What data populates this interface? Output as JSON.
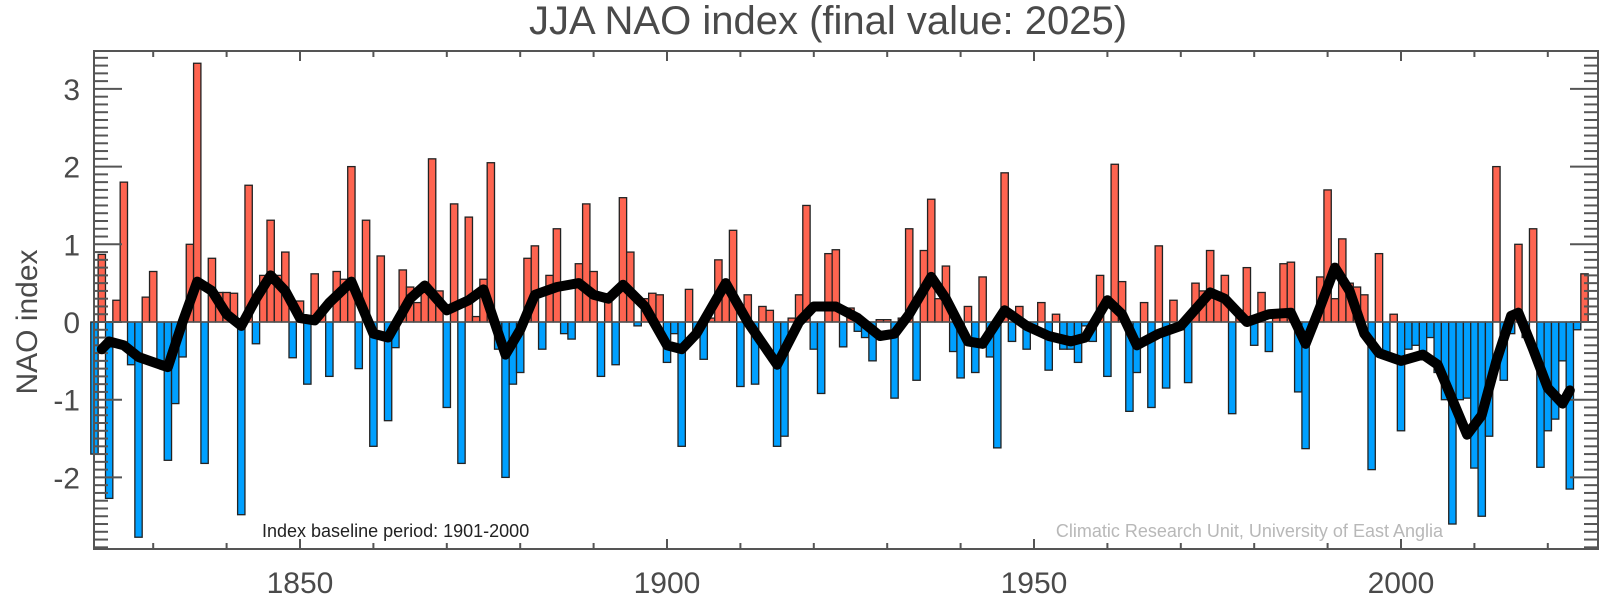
{
  "chart_data": {
    "type": "bar",
    "title": "JJA NAO index (final value: 2025)",
    "xlabel": "",
    "ylabel": "NAO index",
    "xlim": [
      1822,
      2026
    ],
    "ylim": [
      -2.95,
      3.5
    ],
    "x_ticks": [
      1850,
      1900,
      1950,
      2000
    ],
    "y_ticks": [
      -2,
      -1,
      0,
      1,
      2,
      3
    ],
    "grid": false,
    "colors": {
      "positive": "#fe6450",
      "negative": "#00a0ff",
      "smooth": "#000000",
      "axis": "#555555"
    },
    "annotations": {
      "baseline": "Index baseline period: 1901-2000",
      "credit": "Climatic Research Unit, University of East Anglia"
    },
    "start_year": 1822,
    "values": [
      -1.7,
      0.87,
      -2.27,
      0.28,
      1.8,
      -0.55,
      -2.77,
      0.32,
      0.65,
      -0.5,
      -1.78,
      -1.05,
      -0.45,
      1.0,
      3.33,
      -1.82,
      0.82,
      0.38,
      0.38,
      0.37,
      -2.48,
      1.76,
      -0.28,
      0.6,
      1.31,
      0.6,
      0.9,
      -0.46,
      0.27,
      -0.8,
      0.62,
      0.1,
      -0.7,
      0.65,
      0.55,
      2.0,
      -0.6,
      1.31,
      -1.6,
      0.85,
      -1.27,
      -0.33,
      0.67,
      0.45,
      0.25,
      0.5,
      2.1,
      0.4,
      -1.1,
      1.52,
      -1.82,
      1.35,
      0.07,
      0.55,
      2.05,
      -0.35,
      -2.0,
      -0.8,
      -0.65,
      0.82,
      0.98,
      -0.35,
      0.6,
      1.2,
      -0.15,
      -0.22,
      0.75,
      1.52,
      0.65,
      -0.7,
      0.3,
      -0.55,
      1.6,
      0.9,
      -0.05,
      0.3,
      0.37,
      0.35,
      -0.52,
      -0.15,
      -1.6,
      0.42,
      -0.15,
      -0.48,
      0.05,
      0.8,
      0.5,
      1.18,
      -0.83,
      0.35,
      -0.8,
      0.2,
      0.15,
      -1.6,
      -1.47,
      0.05,
      0.35,
      1.5,
      -0.35,
      -0.92,
      0.88,
      0.93,
      -0.32,
      0.18,
      -0.12,
      -0.2,
      -0.5,
      0.03,
      0.03,
      -0.98,
      0.05,
      1.2,
      -0.75,
      0.92,
      1.58,
      0.3,
      0.72,
      -0.38,
      -0.72,
      0.2,
      -0.65,
      0.58,
      -0.45,
      -1.62,
      1.92,
      -0.25,
      0.2,
      -0.35,
      -0.05,
      0.25,
      -0.62,
      0.1,
      -0.35,
      -0.35,
      -0.52,
      -0.05,
      -0.25,
      0.6,
      -0.7,
      2.03,
      0.52,
      -1.15,
      -0.65,
      0.25,
      -1.1,
      0.98,
      -0.85,
      0.28,
      -0.1,
      -0.78,
      0.5,
      0.4,
      0.92,
      0.3,
      0.6,
      -1.18,
      0.15,
      0.7,
      -0.3,
      0.38,
      -0.38,
      0.1,
      0.75,
      0.77,
      -0.9,
      -1.63,
      -0.07,
      0.58,
      1.7,
      0.3,
      1.07,
      0.5,
      0.45,
      0.35,
      -1.9,
      0.88,
      -0.4,
      0.1,
      -1.4,
      -0.35,
      -0.3,
      -0.45,
      -0.2,
      -0.65,
      -1.0,
      -2.6,
      -1.0,
      -0.98,
      -1.88,
      -2.5,
      -1.47,
      2.0,
      -0.75,
      -0.15,
      1.0,
      -0.2,
      1.2,
      -1.87,
      -1.4,
      -1.25,
      -0.5,
      -2.15,
      -0.1,
      0.62
    ],
    "smoothed": {
      "x": [
        1823,
        1824,
        1826,
        1828,
        1831,
        1832,
        1834,
        1836,
        1838,
        1840,
        1842,
        1844,
        1846,
        1848,
        1850,
        1852,
        1854,
        1857,
        1860,
        1862,
        1865,
        1867,
        1870,
        1873,
        1875,
        1878,
        1880,
        1882,
        1885,
        1888,
        1890,
        1892,
        1894,
        1897,
        1900,
        1902,
        1904,
        1908,
        1911,
        1915,
        1918,
        1920,
        1923,
        1926,
        1929,
        1931,
        1933,
        1936,
        1938,
        1941,
        1943,
        1946,
        1949,
        1952,
        1955,
        1957,
        1960,
        1962,
        1964,
        1967,
        1970,
        1974,
        1976,
        1979,
        1982,
        1985,
        1987,
        1989,
        1991,
        1993,
        1995,
        1997,
        2000,
        2003,
        2005,
        2007,
        2009,
        2011,
        2013,
        2015,
        2016,
        2018,
        2020,
        2022,
        2023
      ],
      "y": [
        -0.35,
        -0.25,
        -0.3,
        -0.45,
        -0.55,
        -0.58,
        0.0,
        0.52,
        0.4,
        0.1,
        -0.05,
        0.3,
        0.6,
        0.4,
        0.05,
        0.02,
        0.25,
        0.52,
        -0.15,
        -0.2,
        0.3,
        0.47,
        0.15,
        0.28,
        0.42,
        -0.42,
        -0.1,
        0.35,
        0.45,
        0.5,
        0.35,
        0.3,
        0.48,
        0.2,
        -0.3,
        -0.35,
        -0.15,
        0.5,
        0.0,
        -0.55,
        0.0,
        0.2,
        0.2,
        0.05,
        -0.18,
        -0.15,
        0.1,
        0.58,
        0.3,
        -0.25,
        -0.28,
        0.15,
        -0.05,
        -0.18,
        -0.25,
        -0.2,
        0.28,
        0.1,
        -0.3,
        -0.15,
        -0.05,
        0.38,
        0.3,
        0.0,
        0.1,
        0.12,
        -0.28,
        0.2,
        0.7,
        0.4,
        -0.15,
        -0.4,
        -0.5,
        -0.42,
        -0.55,
        -1.0,
        -1.45,
        -1.2,
        -0.5,
        0.08,
        0.12,
        -0.35,
        -0.85,
        -1.05,
        -0.88
      ]
    }
  }
}
